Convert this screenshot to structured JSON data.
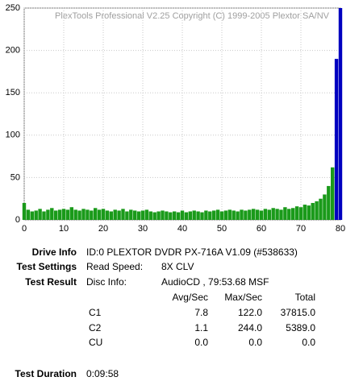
{
  "chart_data": {
    "type": "bar",
    "title": "PlexTools Professional V2.25 Copyright (C) 1999-2005 Plextor SA/NV",
    "x": [
      0,
      1,
      2,
      3,
      4,
      5,
      6,
      7,
      8,
      9,
      10,
      11,
      12,
      13,
      14,
      15,
      16,
      17,
      18,
      19,
      20,
      21,
      22,
      23,
      24,
      25,
      26,
      27,
      28,
      29,
      30,
      31,
      32,
      33,
      34,
      35,
      36,
      37,
      38,
      39,
      40,
      41,
      42,
      43,
      44,
      45,
      46,
      47,
      48,
      49,
      50,
      51,
      52,
      53,
      54,
      55,
      56,
      57,
      58,
      59,
      60,
      61,
      62,
      63,
      64,
      65,
      66,
      67,
      68,
      69,
      70,
      71,
      72,
      73,
      74,
      75,
      76,
      77,
      78,
      79,
      80
    ],
    "series": [
      {
        "color": "#1a9a1a",
        "values": [
          20,
          12,
          10,
          11,
          13,
          10,
          12,
          14,
          11,
          12,
          13,
          12,
          15,
          12,
          11,
          13,
          12,
          11,
          14,
          12,
          13,
          11,
          10,
          12,
          11,
          13,
          10,
          12,
          11,
          10,
          11,
          12,
          10,
          9,
          10,
          11,
          10,
          9,
          10,
          9,
          11,
          9,
          10,
          11,
          10,
          9,
          11,
          10,
          11,
          12,
          10,
          11,
          12,
          11,
          10,
          12,
          11,
          12,
          13,
          12,
          11,
          13,
          12,
          14,
          13,
          12,
          15,
          13,
          14,
          16,
          15,
          18,
          17,
          20,
          22,
          25,
          30,
          40,
          62,
          null,
          null
        ]
      },
      {
        "color": "#0000c0",
        "values": [
          null,
          null,
          null,
          null,
          null,
          null,
          null,
          null,
          null,
          null,
          null,
          null,
          null,
          null,
          null,
          null,
          null,
          null,
          null,
          null,
          null,
          null,
          null,
          null,
          null,
          null,
          null,
          null,
          null,
          null,
          null,
          null,
          null,
          null,
          null,
          null,
          null,
          null,
          null,
          null,
          null,
          null,
          null,
          null,
          null,
          null,
          null,
          null,
          null,
          null,
          null,
          null,
          null,
          null,
          null,
          null,
          null,
          null,
          null,
          null,
          null,
          null,
          null,
          null,
          null,
          null,
          null,
          null,
          null,
          null,
          null,
          null,
          null,
          null,
          null,
          null,
          null,
          null,
          null,
          190,
          250
        ]
      }
    ],
    "xlim": [
      0,
      80
    ],
    "ylim": [
      0,
      250
    ],
    "xticks": [
      0,
      10,
      20,
      30,
      40,
      50,
      60,
      70,
      80
    ],
    "yticks": [
      0,
      50,
      100,
      150,
      200,
      250
    ],
    "grid": true
  },
  "report": {
    "drive": {
      "label": "Drive Info",
      "value": "ID:0 PLEXTOR DVDR PX-716A V1.09 (#538633)"
    },
    "settings": {
      "label": "Test Settings",
      "key": "Read Speed:",
      "value": "8X CLV"
    },
    "result": {
      "label": "Test Result",
      "key": "Disc Info:",
      "value": "AudioCD , 79:53.68 MSF"
    },
    "table": {
      "columns": [
        "Avg/Sec",
        "Max/Sec",
        "Total"
      ],
      "rows": [
        {
          "name": "C1",
          "values": [
            "7.8",
            "122.0",
            "37815.0"
          ]
        },
        {
          "name": "C2",
          "values": [
            "1.1",
            "244.0",
            "5389.0"
          ]
        },
        {
          "name": "CU",
          "values": [
            "0.0",
            "0.0",
            "0.0"
          ]
        }
      ]
    },
    "duration": {
      "label": "Test Duration",
      "value": "0:09:58"
    }
  }
}
